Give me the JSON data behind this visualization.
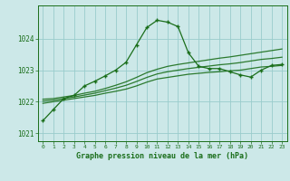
{
  "title": "Graphe pression niveau de la mer (hPa)",
  "bg_color": "#cce8e8",
  "grid_color": "#99cccc",
  "line_color": "#1a6e1a",
  "hours": [
    0,
    1,
    2,
    3,
    4,
    5,
    6,
    7,
    8,
    9,
    10,
    11,
    12,
    13,
    14,
    15,
    16,
    17,
    18,
    19,
    20,
    21,
    22,
    23
  ],
  "pressure_main": [
    1021.4,
    1021.75,
    1022.1,
    1022.2,
    1022.5,
    1022.65,
    1022.82,
    1023.0,
    1023.25,
    1023.8,
    1024.35,
    1024.58,
    1024.52,
    1024.38,
    1023.55,
    1023.12,
    1023.05,
    1023.05,
    1022.95,
    1022.85,
    1022.78,
    1023.0,
    1023.15,
    1023.18
  ],
  "pressure_max": [
    1022.08,
    1022.1,
    1022.15,
    1022.2,
    1022.27,
    1022.33,
    1022.42,
    1022.52,
    1022.63,
    1022.77,
    1022.92,
    1023.03,
    1023.12,
    1023.18,
    1023.23,
    1023.28,
    1023.33,
    1023.38,
    1023.42,
    1023.47,
    1023.52,
    1023.57,
    1023.62,
    1023.67
  ],
  "pressure_min": [
    1021.95,
    1022.0,
    1022.05,
    1022.1,
    1022.15,
    1022.2,
    1022.27,
    1022.33,
    1022.4,
    1022.5,
    1022.62,
    1022.72,
    1022.77,
    1022.82,
    1022.87,
    1022.9,
    1022.93,
    1022.95,
    1022.98,
    1023.0,
    1023.05,
    1023.1,
    1023.12,
    1023.15
  ],
  "pressure_avg": [
    1022.02,
    1022.05,
    1022.1,
    1022.15,
    1022.21,
    1022.27,
    1022.35,
    1022.43,
    1022.52,
    1022.64,
    1022.77,
    1022.88,
    1022.95,
    1023.0,
    1023.05,
    1023.09,
    1023.13,
    1023.17,
    1023.2,
    1023.24,
    1023.29,
    1023.34,
    1023.37,
    1023.41
  ],
  "ylim": [
    1020.75,
    1025.05
  ],
  "yticks": [
    1021,
    1022,
    1023,
    1024
  ],
  "xlim": [
    -0.5,
    23.5
  ]
}
